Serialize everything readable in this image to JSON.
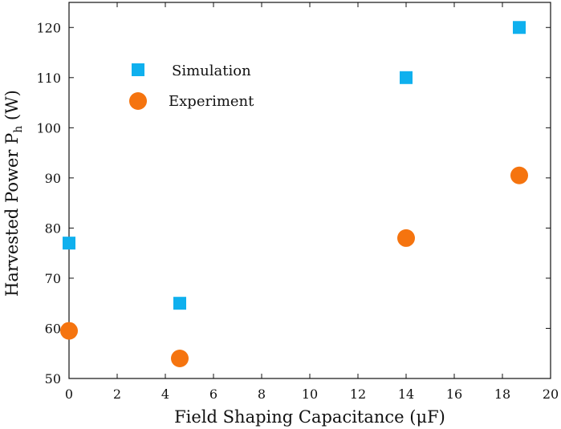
{
  "chart_data": {
    "type": "scatter",
    "title": "",
    "xlabel": "Field Shaping Capacitance (μF)",
    "ylabel": "Harvested Power P",
    "ylabel_sub": "h",
    "ylabel_unit": " (W)",
    "xlim": [
      0,
      20
    ],
    "ylim": [
      50,
      125
    ],
    "xticks": [
      0,
      2,
      4,
      6,
      8,
      10,
      12,
      14,
      16,
      18,
      20
    ],
    "yticks": [
      50,
      60,
      70,
      80,
      90,
      100,
      110,
      120
    ],
    "grid": false,
    "legend_position": "top-left",
    "series": [
      {
        "name": "Simulation",
        "marker": "square",
        "color": "#0fb0ee",
        "x": [
          0,
          4.6,
          14,
          18.7
        ],
        "y": [
          77,
          65,
          110,
          120
        ]
      },
      {
        "name": "Experiment",
        "marker": "circle",
        "color": "#f5740f",
        "x": [
          0,
          4.6,
          14,
          18.7
        ],
        "y": [
          59.5,
          54,
          78,
          90.5
        ]
      }
    ]
  }
}
